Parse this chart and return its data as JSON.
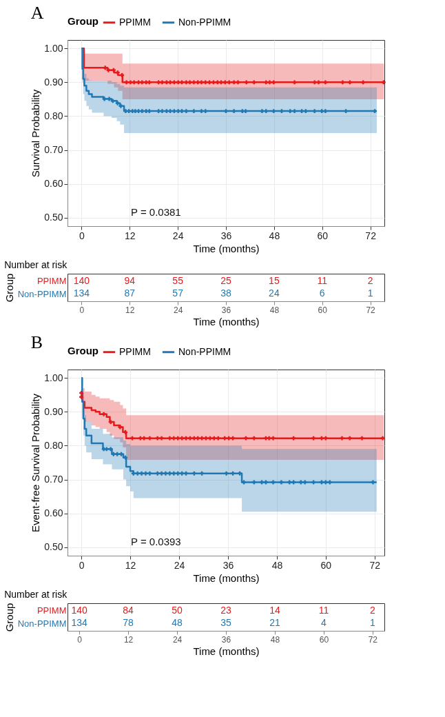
{
  "chart_data": [
    {
      "type": "step",
      "title": "A",
      "xlabel": "Time (months)",
      "ylabel": "Survival Probability",
      "legend_title": "Group",
      "legend": "top",
      "grid": true,
      "xlim": [
        -3.5,
        75.5
      ],
      "ylim": [
        0.475,
        1.025
      ],
      "xticks": [
        0,
        12,
        24,
        36,
        48,
        60,
        72
      ],
      "yticks": [
        {
          "value": 0.5,
          "label": "0.50"
        },
        {
          "value": 0.6,
          "label": "0.60"
        },
        {
          "value": 0.7,
          "label": "0.70"
        },
        {
          "value": 0.8,
          "label": "0.80"
        },
        {
          "value": 0.9,
          "label": "0.90"
        },
        {
          "value": 1,
          "label": "1.00"
        }
      ],
      "annotations": [
        "P = 0.0381"
      ],
      "series": [
        {
          "name": "PPIMM",
          "color": "#e41a1c",
          "x": [
            0,
            0.6,
            6.5,
            8.1,
            9.1,
            10.2,
            75.4
          ],
          "values": [
            1,
            0.943,
            0.936,
            0.929,
            0.921,
            0.9,
            0.9
          ],
          "lower": [
            1,
            0.905,
            0.895,
            0.885,
            0.875,
            0.85,
            0.85
          ],
          "upper": [
            1,
            0.985,
            0.985,
            0.985,
            0.985,
            0.955,
            0.955
          ]
        },
        {
          "name": "Non-PPIMM",
          "color": "#1f78b4",
          "x": [
            0,
            0.2,
            0.4,
            0.7,
            1.2,
            1.8,
            2.6,
            5.5,
            7.5,
            8.8,
            9.6,
            10.6,
            73.6
          ],
          "values": [
            1,
            0.94,
            0.91,
            0.89,
            0.875,
            0.865,
            0.857,
            0.851,
            0.845,
            0.838,
            0.83,
            0.815,
            0.815
          ],
          "lower": [
            1,
            0.9,
            0.865,
            0.845,
            0.83,
            0.82,
            0.81,
            0.8,
            0.795,
            0.785,
            0.775,
            0.75,
            0.75
          ],
          "upper": [
            1,
            0.97,
            0.945,
            0.925,
            0.912,
            0.906,
            0.905,
            0.905,
            0.9,
            0.895,
            0.89,
            0.885,
            0.885
          ]
        },
        {
          "type": "scatter",
          "marker": "cross",
          "color": "#e41a1c",
          "x": [
            5.9,
            6.7,
            8.0,
            9.0,
            10.1,
            11.2,
            12.2,
            13.1,
            14.2,
            15.1,
            16.1,
            16.9,
            19.2,
            20.1,
            21.2,
            22.1,
            23.1,
            24.1,
            25.0,
            26.1,
            27.0,
            28.0,
            29.0,
            29.9,
            30.9,
            31.9,
            32.9,
            33.9,
            34.8,
            35.8,
            36.8,
            38.0,
            39.0,
            41.1,
            43.0,
            46.0,
            46.9,
            47.9,
            53.1,
            58.1,
            59.1,
            60.8,
            65.1,
            66.9,
            70.2,
            75.3
          ],
          "values": [
            0.943,
            0.936,
            0.936,
            0.929,
            0.921,
            0.9,
            0.9,
            0.9,
            0.9,
            0.9,
            0.9,
            0.9,
            0.9,
            0.9,
            0.9,
            0.9,
            0.9,
            0.9,
            0.9,
            0.9,
            0.9,
            0.9,
            0.9,
            0.9,
            0.9,
            0.9,
            0.9,
            0.9,
            0.9,
            0.9,
            0.9,
            0.9,
            0.9,
            0.9,
            0.9,
            0.9,
            0.9,
            0.9,
            0.9,
            0.9,
            0.9,
            0.9,
            0.9,
            0.9,
            0.9,
            0.9
          ]
        },
        {
          "type": "scatter",
          "marker": "cross",
          "color": "#1f78b4",
          "x": [
            5.7,
            6.9,
            7.8,
            9.0,
            9.8,
            11.0,
            11.8,
            12.7,
            13.4,
            14.2,
            15.1,
            16.1,
            16.9,
            19.2,
            20.1,
            21.2,
            22.1,
            23.1,
            24.1,
            25.0,
            26.1,
            28.0,
            29.9,
            30.9,
            36.0,
            38.0,
            40.1,
            40.9,
            45.0,
            46.0,
            47.9,
            49.9,
            52.0,
            53.1,
            54.9,
            55.9,
            58.1,
            59.9,
            60.8,
            65.9,
            73.1
          ],
          "values": [
            0.851,
            0.851,
            0.845,
            0.838,
            0.83,
            0.815,
            0.815,
            0.815,
            0.815,
            0.815,
            0.815,
            0.815,
            0.815,
            0.815,
            0.815,
            0.815,
            0.815,
            0.815,
            0.815,
            0.815,
            0.815,
            0.815,
            0.815,
            0.815,
            0.815,
            0.815,
            0.815,
            0.815,
            0.815,
            0.815,
            0.815,
            0.815,
            0.815,
            0.815,
            0.815,
            0.815,
            0.815,
            0.815,
            0.815,
            0.815,
            0.815
          ]
        }
      ]
    },
    {
      "type": "heatmap",
      "title": "Number at risk",
      "xlabel": "Time (months)",
      "ylabel": "Group",
      "data_labels": true,
      "categories": [
        "0",
        "12",
        "24",
        "36",
        "48",
        "60",
        "72"
      ],
      "y_categories": [
        "PPIMM",
        "Non-PPIMM"
      ],
      "cells": [
        [
          140,
          94,
          55,
          25,
          15,
          11,
          2
        ],
        [
          134,
          87,
          57,
          38,
          24,
          6,
          1
        ]
      ]
    },
    {
      "type": "step",
      "title": "B",
      "xlabel": "Time (months)",
      "ylabel": "Event-free Survival Probability",
      "legend_title": "Group",
      "legend": "top",
      "grid": true,
      "xlim": [
        -3.4,
        74.4
      ],
      "ylim": [
        0.475,
        1.025
      ],
      "xticks": [
        0,
        12,
        24,
        36,
        48,
        60,
        72
      ],
      "yticks": [
        {
          "value": 0.5,
          "label": "0.50"
        },
        {
          "value": 0.6,
          "label": "0.60"
        },
        {
          "value": 0.7,
          "label": "0.70"
        },
        {
          "value": 0.8,
          "label": "0.80"
        },
        {
          "value": 0.9,
          "label": "0.90"
        },
        {
          "value": 1,
          "label": "1.00"
        }
      ],
      "annotations": [
        "P = 0.0393"
      ],
      "series": [
        {
          "name": "PPIMM",
          "color": "#e41a1c",
          "x": [
            0,
            0.3,
            0.8,
            2.5,
            3.5,
            4.5,
            6.2,
            7,
            8,
            9.5,
            10.2,
            11,
            74.3
          ],
          "values": [
            0.956,
            0.93,
            0.912,
            0.905,
            0.9,
            0.893,
            0.885,
            0.87,
            0.86,
            0.855,
            0.84,
            0.822,
            0.822
          ],
          "lower": [
            0.93,
            0.89,
            0.87,
            0.86,
            0.855,
            0.85,
            0.84,
            0.83,
            0.82,
            0.81,
            0.795,
            0.758,
            0.758
          ],
          "upper": [
            0.975,
            0.97,
            0.96,
            0.95,
            0.945,
            0.94,
            0.94,
            0.935,
            0.93,
            0.92,
            0.91,
            0.89,
            0.89
          ]
        },
        {
          "name": "Non-PPIMM",
          "color": "#1f78b4",
          "x": [
            0,
            0.2,
            0.5,
            0.8,
            1.2,
            2.5,
            5.3,
            7.5,
            10.3,
            11,
            12,
            12.8,
            39.4,
            72.5
          ],
          "values": [
            1,
            0.93,
            0.88,
            0.85,
            0.83,
            0.807,
            0.79,
            0.775,
            0.765,
            0.738,
            0.725,
            0.718,
            0.692,
            0.692
          ],
          "lower": [
            1,
            0.88,
            0.83,
            0.8,
            0.78,
            0.76,
            0.745,
            0.73,
            0.7,
            0.68,
            0.665,
            0.645,
            0.605,
            0.605
          ],
          "upper": [
            1,
            0.95,
            0.92,
            0.89,
            0.87,
            0.85,
            0.835,
            0.825,
            0.815,
            0.805,
            0.8,
            0.8,
            0.79,
            0.79
          ]
        },
        {
          "type": "scatter",
          "marker": "cross",
          "color": "#e41a1c",
          "x": [
            0,
            0,
            5.5,
            7.2,
            9.5,
            10.8,
            12.5,
            14.5,
            15.4,
            16.8,
            18.7,
            19.7,
            21.7,
            22.7,
            23.7,
            24.7,
            25.7,
            26.7,
            27.7,
            28.6,
            29.6,
            30.6,
            31.6,
            32.6,
            33.6,
            35.2,
            36.2,
            37.2,
            40.4,
            42.4,
            45.3,
            46.1,
            47.1,
            52.1,
            57.0,
            59.0,
            60.0,
            64.0,
            65.9,
            68.9,
            74.0
          ],
          "values": [
            0.956,
            0.944,
            0.893,
            0.87,
            0.855,
            0.84,
            0.822,
            0.822,
            0.822,
            0.822,
            0.822,
            0.822,
            0.822,
            0.822,
            0.822,
            0.822,
            0.822,
            0.822,
            0.822,
            0.822,
            0.822,
            0.822,
            0.822,
            0.822,
            0.822,
            0.822,
            0.822,
            0.822,
            0.822,
            0.822,
            0.822,
            0.822,
            0.822,
            0.822,
            0.822,
            0.822,
            0.822,
            0.822,
            0.822,
            0.822,
            0.822
          ]
        },
        {
          "type": "scatter",
          "marker": "cross",
          "color": "#1f78b4",
          "x": [
            5.5,
            6.2,
            7.2,
            7.9,
            8.8,
            9.8,
            10.8,
            12.8,
            13.8,
            14.8,
            15.8,
            16.8,
            18.7,
            19.7,
            20.7,
            21.7,
            22.7,
            23.7,
            24.7,
            25.7,
            27.7,
            29.6,
            35.6,
            37.2,
            38.9,
            39.9,
            42.4,
            44.3,
            45.3,
            47.1,
            49.1,
            51.1,
            52.1,
            53.9,
            54.9,
            57.0,
            59.0,
            60.0,
            61.0,
            71.6
          ],
          "values": [
            0.79,
            0.79,
            0.79,
            0.775,
            0.775,
            0.775,
            0.765,
            0.718,
            0.718,
            0.718,
            0.718,
            0.718,
            0.718,
            0.718,
            0.718,
            0.718,
            0.718,
            0.718,
            0.718,
            0.718,
            0.718,
            0.718,
            0.718,
            0.718,
            0.718,
            0.692,
            0.692,
            0.692,
            0.692,
            0.692,
            0.692,
            0.692,
            0.692,
            0.692,
            0.692,
            0.692,
            0.692,
            0.692,
            0.692,
            0.692
          ]
        }
      ]
    },
    {
      "type": "heatmap",
      "title": "Number at risk",
      "xlabel": "Time (months)",
      "ylabel": "Group",
      "data_labels": true,
      "categories": [
        "0",
        "12",
        "24",
        "36",
        "48",
        "60",
        "72"
      ],
      "y_categories": [
        "PPIMM",
        "Non-PPIMM"
      ],
      "cells": [
        [
          140,
          84,
          50,
          23,
          14,
          11,
          2
        ],
        [
          134,
          78,
          48,
          35,
          21,
          4,
          1
        ]
      ]
    }
  ]
}
